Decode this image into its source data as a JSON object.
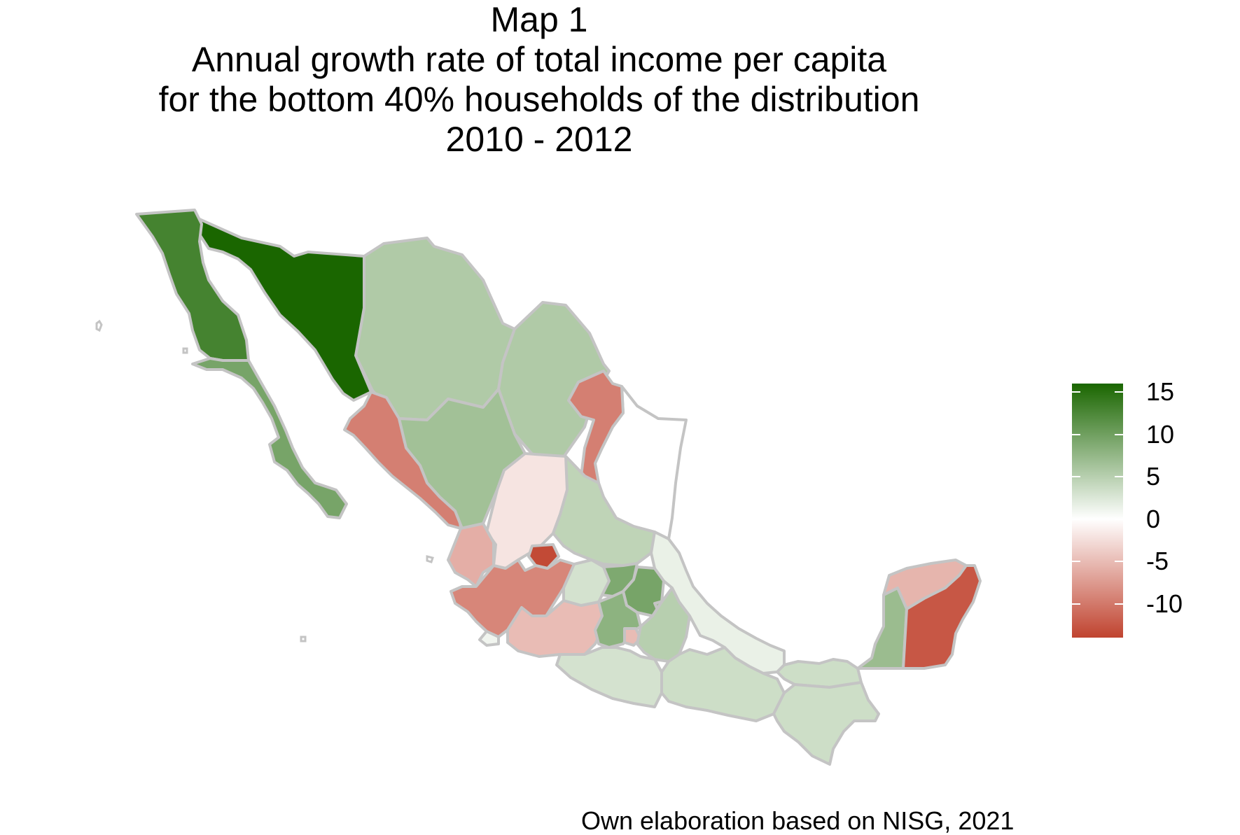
{
  "title": {
    "line1": "Map 1",
    "line2": "Annual growth rate of total income per capita",
    "line3": "for the bottom 40% households of the distribution",
    "line4": "2010 - 2012"
  },
  "caption": "Own elaboration based on NISG, 2021",
  "legend": {
    "min": -14,
    "max": 16,
    "ticks": [
      {
        "value": 15,
        "label": "15"
      },
      {
        "value": 10,
        "label": "10"
      },
      {
        "value": 5,
        "label": "5"
      },
      {
        "value": 0,
        "label": "0"
      },
      {
        "value": -5,
        "label": "-5"
      },
      {
        "value": -10,
        "label": "-10"
      }
    ],
    "colors": {
      "low": "#c0432f",
      "mid": "#ffffff",
      "high": "#1a6600"
    }
  },
  "chart_data": {
    "type": "choropleth",
    "value_range": [
      -14,
      16
    ],
    "regions": [
      {
        "id": "baja-california",
        "value": 13.0
      },
      {
        "id": "baja-california-sur",
        "value": 9.5
      },
      {
        "id": "sonora",
        "value": 16.0
      },
      {
        "id": "chihuahua",
        "value": 5.5
      },
      {
        "id": "coahuila",
        "value": 5.5
      },
      {
        "id": "nuevo-leon",
        "value": -9.5
      },
      {
        "id": "tamaulipas",
        "value": 0.0
      },
      {
        "id": "sinaloa",
        "value": -9.5
      },
      {
        "id": "durango",
        "value": 6.5
      },
      {
        "id": "zacatecas",
        "value": -2.0
      },
      {
        "id": "san-luis-potosi",
        "value": 4.5
      },
      {
        "id": "nayarit",
        "value": -6.0
      },
      {
        "id": "aguascalientes",
        "value": -13.5
      },
      {
        "id": "jalisco",
        "value": -9.0
      },
      {
        "id": "colima",
        "value": 1.0
      },
      {
        "id": "michoacan",
        "value": -5.0
      },
      {
        "id": "guanajuato",
        "value": 3.0
      },
      {
        "id": "queretaro",
        "value": 9.0
      },
      {
        "id": "hidalgo",
        "value": 9.5
      },
      {
        "id": "mexico",
        "value": 8.0
      },
      {
        "id": "mexico-city",
        "value": -5.0
      },
      {
        "id": "morelos",
        "value": -4.0
      },
      {
        "id": "tlaxcala",
        "value": 6.5
      },
      {
        "id": "puebla",
        "value": 5.0
      },
      {
        "id": "veracruz",
        "value": 1.5
      },
      {
        "id": "guerrero",
        "value": 3.0
      },
      {
        "id": "oaxaca",
        "value": 3.5
      },
      {
        "id": "chiapas",
        "value": 3.5
      },
      {
        "id": "tabasco",
        "value": 3.5
      },
      {
        "id": "campeche",
        "value": 7.0
      },
      {
        "id": "yucatan",
        "value": -5.5
      },
      {
        "id": "quintana-roo",
        "value": -12.5
      }
    ]
  }
}
